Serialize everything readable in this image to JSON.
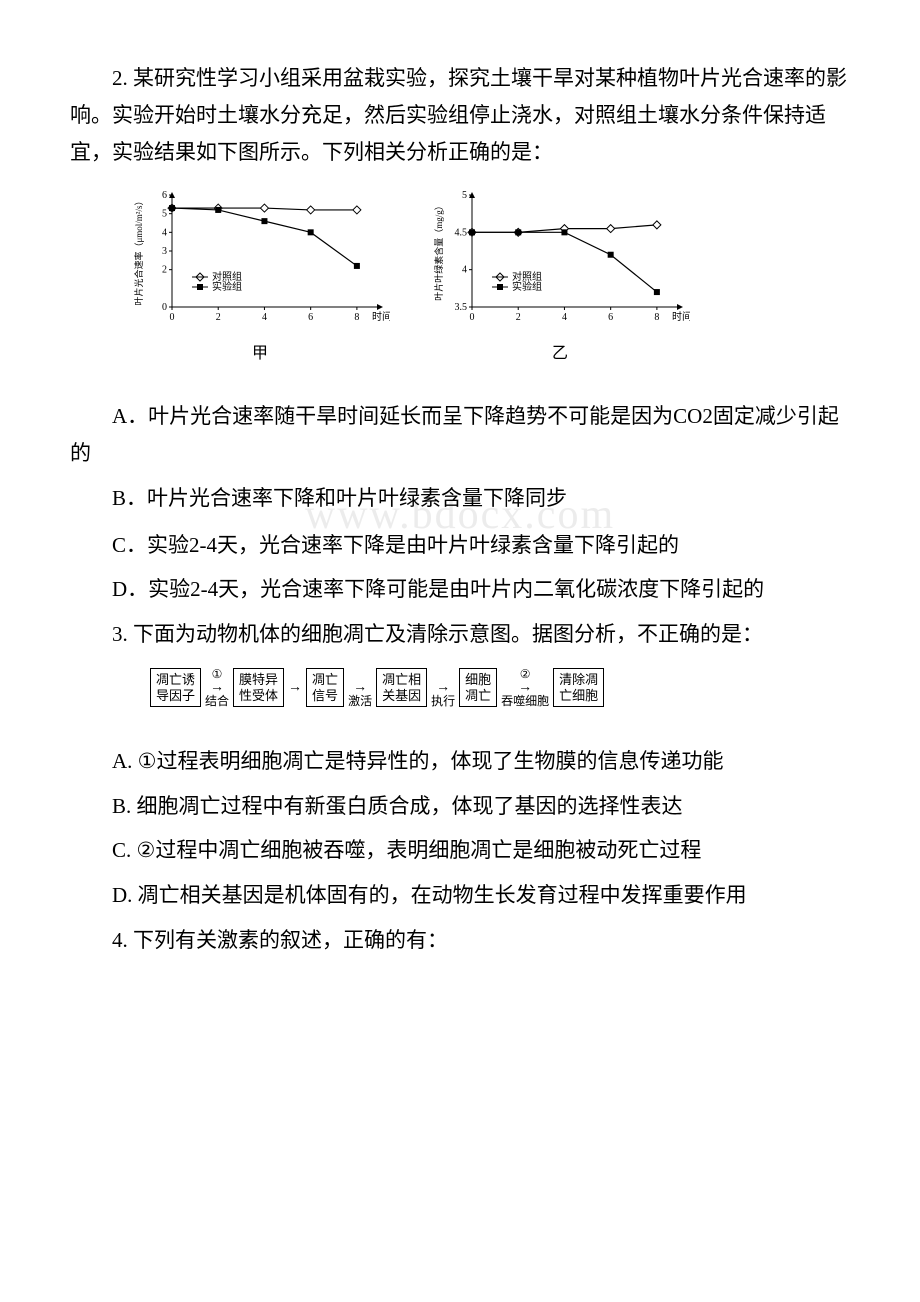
{
  "q2": {
    "stem": "2. 某研究性学习小组采用盆栽实验，探究土壤干旱对某种植物叶片光合速率的影响。实验开始时土壤水分充足，然后实验组停止浇水，对照组土壤水分条件保持适宜，实验结果如下图所示。下列相关分析正确的是：",
    "optA": "A．叶片光合速率随干旱时间延长而呈下降趋势不可能是因为CO2固定减少引起的",
    "optB": "B．叶片光合速率下降和叶片叶绿素含量下降同步",
    "optC": "C．实验2-4天，光合速率下降是由叶片叶绿素含量下降引起的",
    "optD": "D．实验2-4天，光合速率下降可能是由叶片内二氧化碳浓度下降引起的",
    "chart1": {
      "label": "甲",
      "ylabel": "叶片光合速率（μmol/m²/s）",
      "xlabel": "时间 (d)",
      "yticks": [
        0,
        2,
        3,
        4,
        5,
        6
      ],
      "xticks": [
        0,
        2,
        4,
        6,
        8
      ],
      "ylim": [
        0,
        6
      ],
      "xlim": [
        0,
        9
      ],
      "legend": [
        "对照组",
        "实验组"
      ],
      "control": {
        "x": [
          0,
          2,
          4,
          6,
          8
        ],
        "y": [
          5.3,
          5.3,
          5.3,
          5.2,
          5.2
        ],
        "marker": "diamond-open",
        "color": "#000000"
      },
      "exp": {
        "x": [
          0,
          2,
          4,
          6,
          8
        ],
        "y": [
          5.3,
          5.2,
          4.6,
          4.0,
          2.2
        ],
        "marker": "square-filled",
        "color": "#000000"
      },
      "line_width": 1.2,
      "bg": "#ffffff"
    },
    "chart2": {
      "label": "乙",
      "ylabel": "叶片叶绿素含量（mg/g）",
      "xlabel": "时间 (d)",
      "yticks": [
        3.5,
        4.0,
        4.5,
        5.0
      ],
      "xticks": [
        0,
        2,
        4,
        6,
        8
      ],
      "ylim": [
        3.5,
        5.0
      ],
      "xlim": [
        0,
        9
      ],
      "legend": [
        "对照组",
        "实验组"
      ],
      "control": {
        "x": [
          0,
          2,
          4,
          6,
          8
        ],
        "y": [
          4.5,
          4.5,
          4.55,
          4.55,
          4.6
        ],
        "marker": "diamond-open",
        "color": "#000000"
      },
      "exp": {
        "x": [
          0,
          2,
          4,
          6,
          8
        ],
        "y": [
          4.5,
          4.5,
          4.5,
          4.2,
          3.7
        ],
        "marker": "square-filled",
        "color": "#000000"
      },
      "line_width": 1.2,
      "bg": "#ffffff"
    }
  },
  "q3": {
    "stem": "3. 下面为动物机体的细胞凋亡及清除示意图。据图分析，不正确的是：",
    "optA": "A. ①过程表明细胞凋亡是特异性的，体现了生物膜的信息传递功能",
    "optB": "B. 细胞凋亡过程中有新蛋白质合成，体现了基因的选择性表达",
    "optC": "C. ②过程中凋亡细胞被吞噬，表明细胞凋亡是细胞被动死亡过程",
    "optD": "D. 凋亡相关基因是机体固有的，在动物生长发育过程中发挥重要作用",
    "flow": {
      "boxes": [
        "凋亡诱\n导因子",
        "膜特异\n性受体",
        "凋亡\n信号",
        "凋亡相\n关基因",
        "细胞\n凋亡",
        "清除凋\n亡细胞"
      ],
      "connectors": [
        {
          "top": "①",
          "bottom": "结合"
        },
        {
          "top": "",
          "bottom": ""
        },
        {
          "top": "",
          "bottom": "激活"
        },
        {
          "top": "",
          "bottom": "执行"
        },
        {
          "top": "②",
          "bottom": "吞噬细胞"
        }
      ],
      "border_color": "#000000",
      "font_size": 13
    }
  },
  "q4": {
    "stem": "4. 下列有关激素的叙述，正确的有："
  },
  "watermark": "www.bdocx.com"
}
